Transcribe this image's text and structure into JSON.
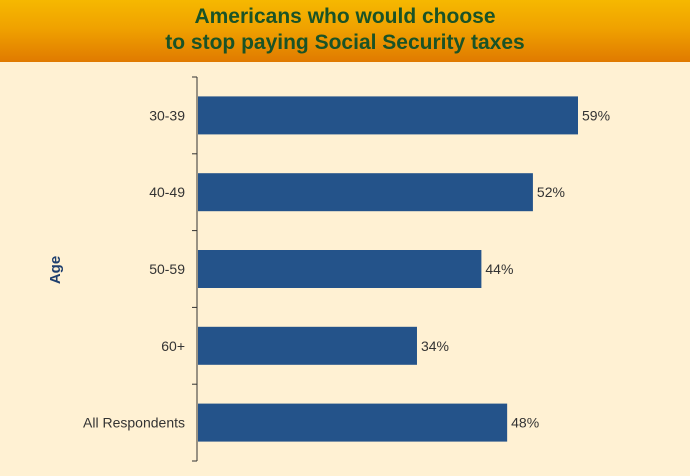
{
  "chart_data": {
    "type": "bar",
    "orientation": "horizontal",
    "title": "Americans who would choose to stop paying Social Security taxes",
    "title_lines": [
      "Americans who would choose",
      "to stop paying Social Security taxes"
    ],
    "ylabel": "Age",
    "xlabel": "",
    "categories": [
      "30-39",
      "40-49",
      "50-59",
      "60+",
      "All Respondents"
    ],
    "values": [
      59,
      52,
      44,
      34,
      48
    ],
    "data_labels": [
      "59%",
      "52%",
      "44%",
      "34%",
      "48%"
    ],
    "xlim": [
      0,
      100
    ],
    "grid": false,
    "legend": "none",
    "colors": {
      "bar": "#24538a",
      "header_top": "#f6b800",
      "header_bottom": "#e07a00",
      "title": "#1a5326",
      "background": "#fff1d3"
    }
  }
}
